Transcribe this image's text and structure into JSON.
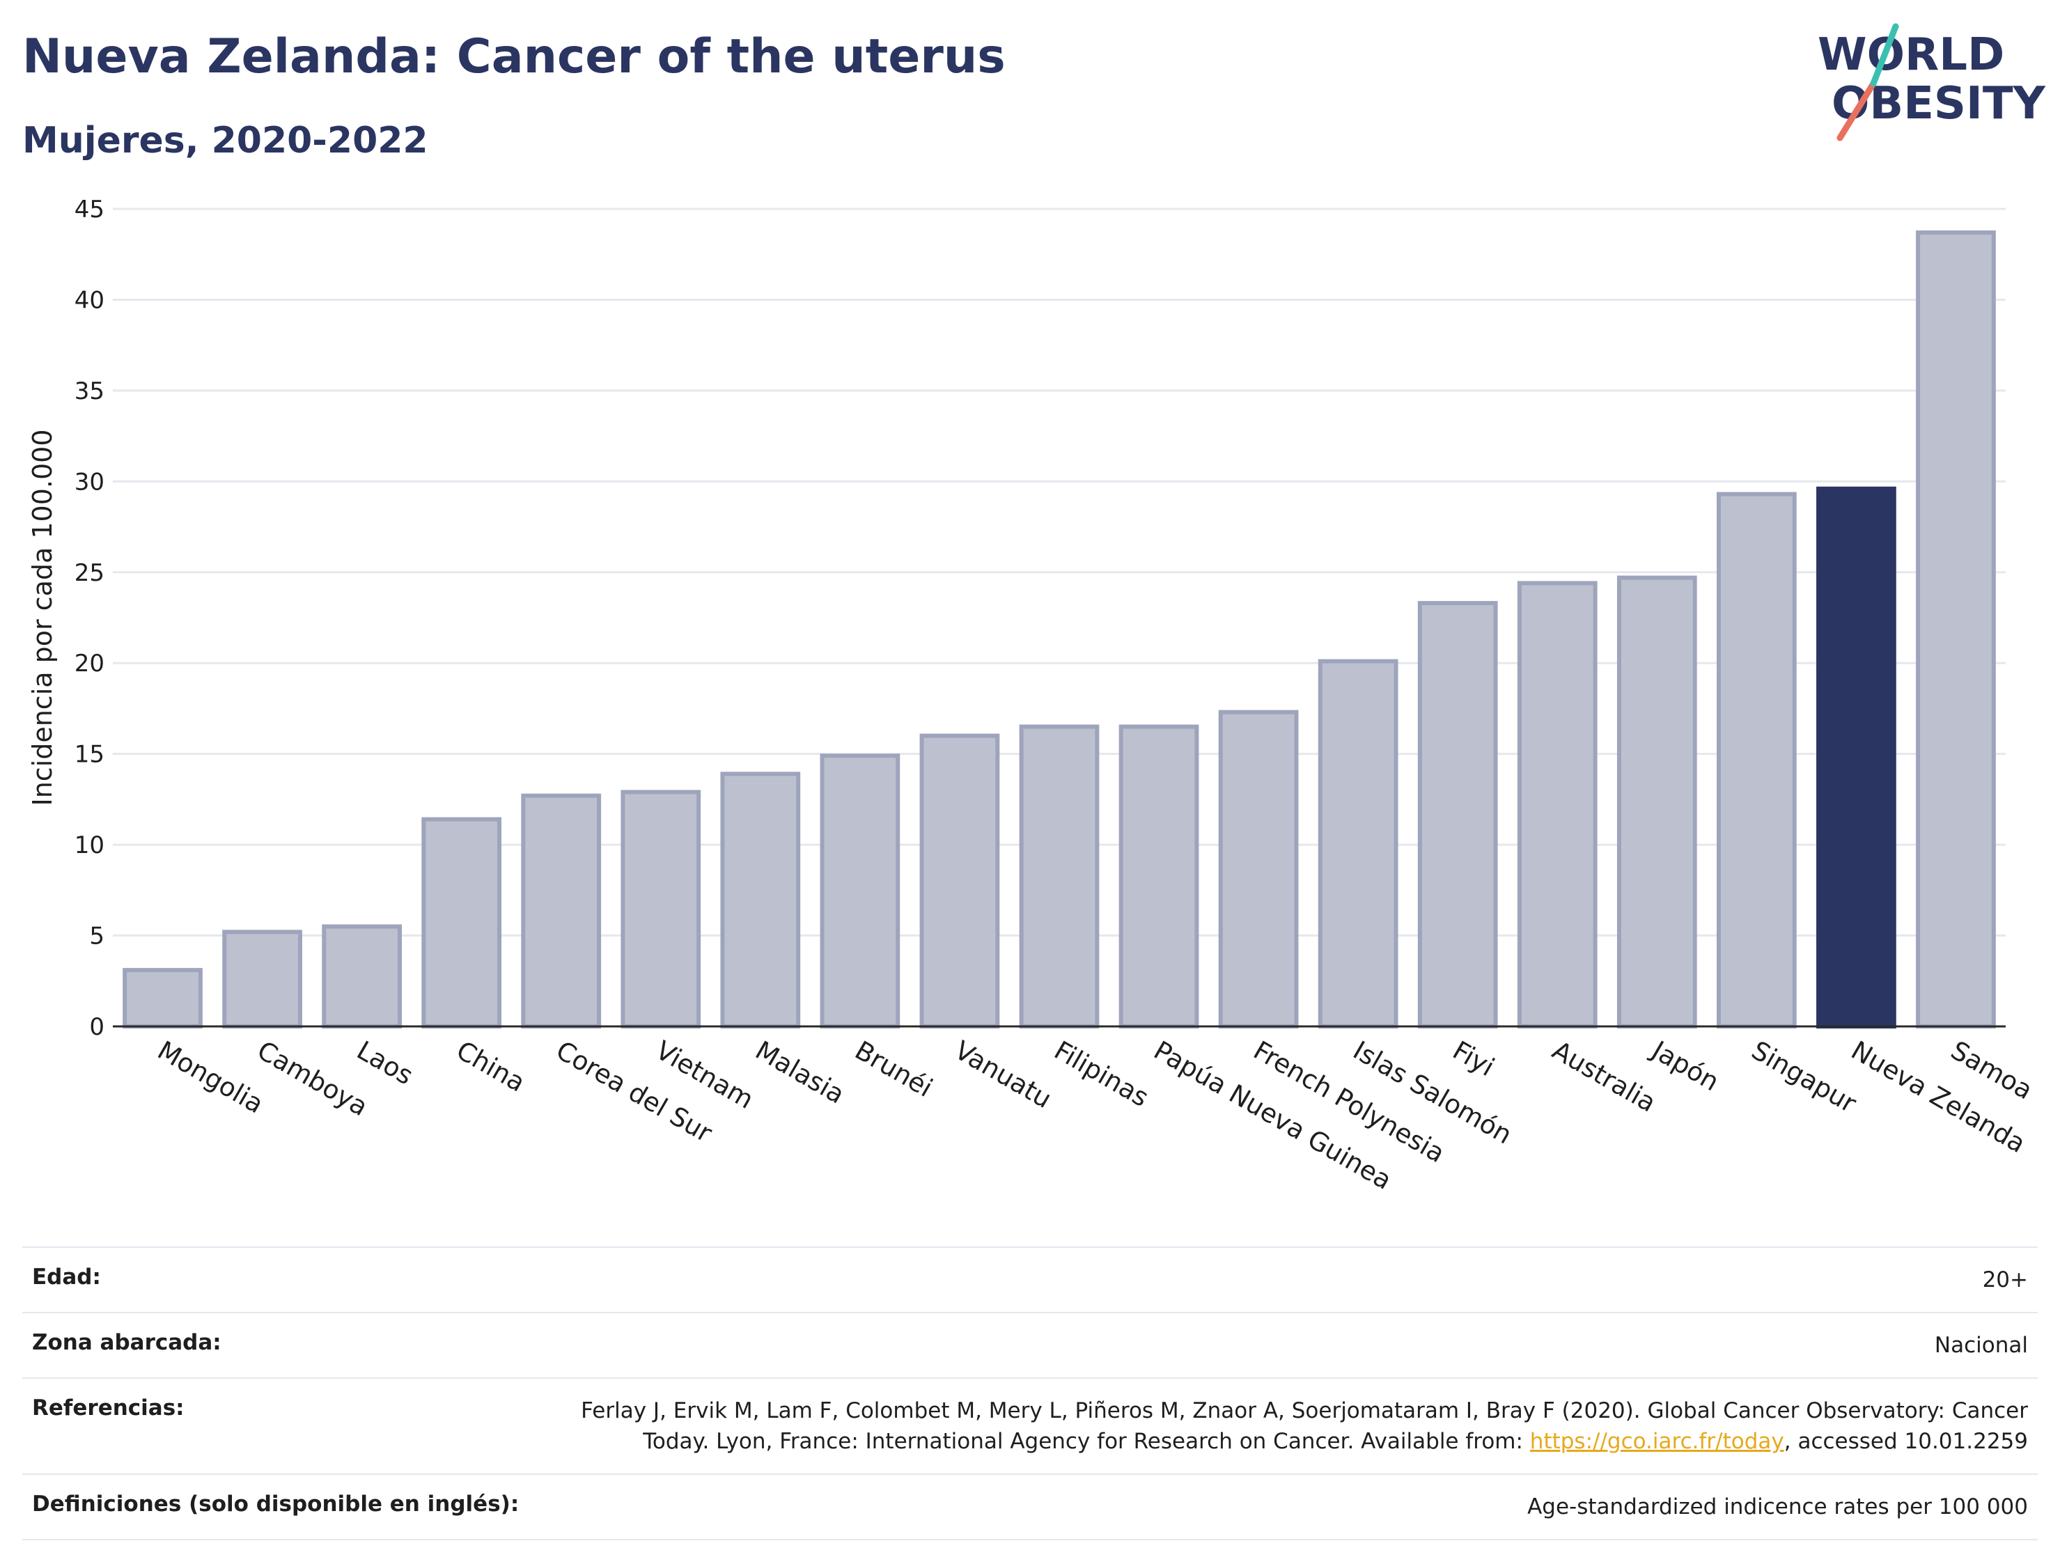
{
  "header": {
    "title": "Nueva Zelanda: Cancer of the uterus",
    "subtitle": "Mujeres, 2020-2022"
  },
  "logo": {
    "line1": "WORLD",
    "line2": "OBESITY"
  },
  "chart_data": {
    "type": "bar",
    "ylabel": "Incidencia por cada 100.000",
    "ylim": [
      0,
      45
    ],
    "yticks": [
      0,
      5,
      10,
      15,
      20,
      25,
      30,
      35,
      40,
      45
    ],
    "grid": true,
    "categories": [
      "Mongolia",
      "Camboya",
      "Laos",
      "China",
      "Corea del Sur",
      "Vietnam",
      "Malasia",
      "Brunéi",
      "Vanuatu",
      "Filipinas",
      "Papúa Nueva Guinea",
      "French Polynesia",
      "Islas Salomón",
      "Fiyi",
      "Australia",
      "Japón",
      "Singapur",
      "Nueva Zelanda",
      "Samoa"
    ],
    "values": [
      3.1,
      5.2,
      5.5,
      11.4,
      12.7,
      12.9,
      13.9,
      14.9,
      16.0,
      16.5,
      16.5,
      17.3,
      20.1,
      23.3,
      24.4,
      24.7,
      29.3,
      29.6,
      43.7
    ],
    "highlight": "Nueva Zelanda",
    "colors": {
      "bar": "#bdc1cf",
      "bar_border": "#9ea4bb",
      "highlight": "#2b3561"
    }
  },
  "details": [
    {
      "label": "Edad:",
      "value": "20+"
    },
    {
      "label": "Zona abarcada:",
      "value": "Nacional"
    },
    {
      "label": "Referencias:",
      "value_line1": "Ferlay J, Ervik M, Lam F, Colombet M, Mery L, Piñeros M, Znaor A, Soerjomataram I, Bray F (2020). Global Cancer Observatory: Cancer",
      "value_line2_pre": "Today. Lyon, France: International Agency for Research on Cancer. Available from: ",
      "link": "https://gco.iarc.fr/today",
      "value_line2_post": ", accessed 10.01.2259"
    },
    {
      "label": "Definiciones (solo disponible en inglés):",
      "value": "Age-standardized indicence rates per 100 000"
    }
  ]
}
